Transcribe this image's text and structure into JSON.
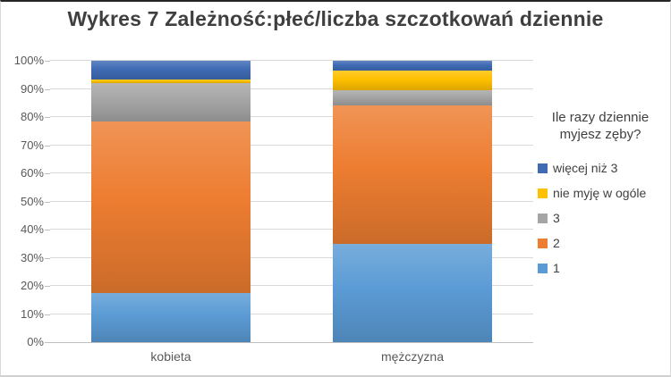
{
  "chart_data": {
    "type": "bar",
    "stacked": true,
    "percent_axis": true,
    "title": "Wykres 7 Zależność:płeć/liczba szczotkowań dziennie",
    "legend_title": "Ile razy dziennie myjesz zęby?",
    "legend_position": "right",
    "categories": [
      "kobieta",
      "mężczyzna"
    ],
    "series": [
      {
        "name": "1",
        "color": "#5B9BD5",
        "values": [
          17.5,
          35.0
        ]
      },
      {
        "name": "2",
        "color": "#ED7D31",
        "values": [
          61.0,
          49.0
        ]
      },
      {
        "name": "3",
        "color": "#A5A5A5",
        "values": [
          13.5,
          5.5
        ]
      },
      {
        "name": "nie myję w ogóle",
        "color": "#FFC000",
        "values": [
          1.5,
          7.0
        ]
      },
      {
        "name": "więcej niż 3",
        "color": "#3F6BB5",
        "values": [
          6.5,
          3.5
        ]
      }
    ],
    "ylim": [
      0,
      100
    ],
    "y_tick_step": 10,
    "y_tick_labels": [
      "0%",
      "10%",
      "20%",
      "30%",
      "40%",
      "50%",
      "60%",
      "70%",
      "80%",
      "90%",
      "100%"
    ],
    "grid": true,
    "grid_color": "#D9D9D9",
    "axis_line_color": "#BFBFBF",
    "axis_text_color": "#595959",
    "title_color": "#3F3F3F"
  }
}
